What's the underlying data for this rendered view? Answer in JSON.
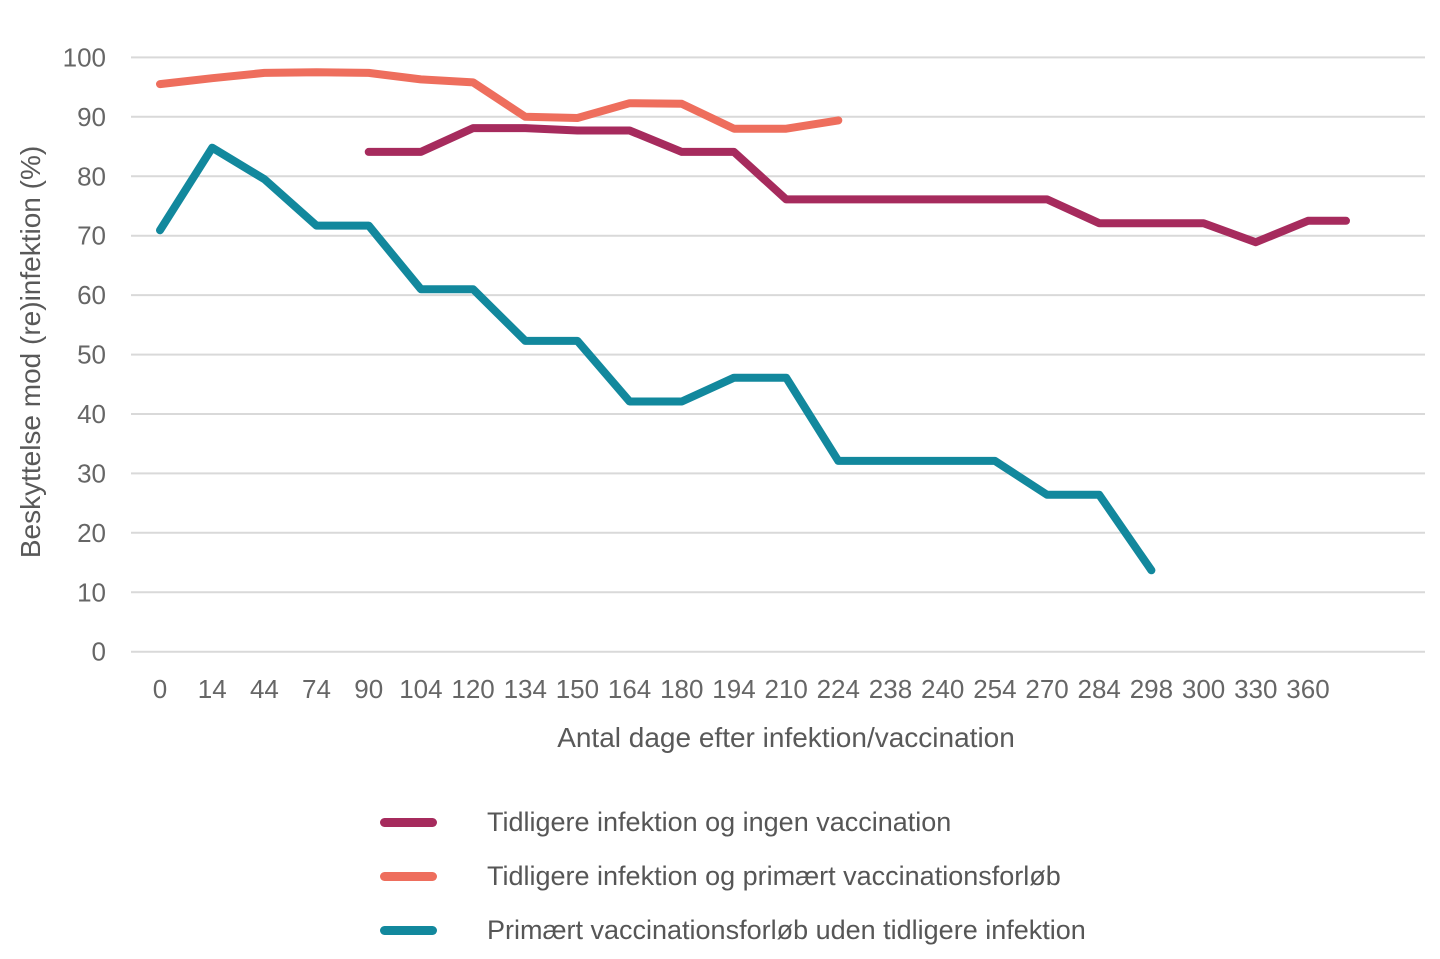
{
  "chart_data": {
    "type": "line",
    "title": "",
    "xlabel": "Antal dage efter infektion/vaccination",
    "ylabel": "Beskyttelse mod (re)infektion (%)",
    "ylim": [
      0,
      100
    ],
    "ytick_step": 10,
    "ytick_labels": [
      "0",
      "10",
      "20",
      "30",
      "40",
      "50",
      "60",
      "70",
      "80",
      "90",
      "100"
    ],
    "grid": "horizontal",
    "grid_color": "#D9D9D9",
    "background_color": "#FFFFFF",
    "tick_text_color": "#666666",
    "axis_title_color": "#595959",
    "legend_text_color": "#565656",
    "legend_position": "bottom",
    "categories": [
      "0",
      "14",
      "44",
      "74",
      "90",
      "104",
      "120",
      "134",
      "150",
      "164",
      "180",
      "194",
      "210",
      "224",
      "238",
      "240",
      "254",
      "270",
      "284",
      "298",
      "300",
      "330",
      "360"
    ],
    "series": [
      {
        "name": "Tidligere infektion og ingen vaccination",
        "color": "#A62B5D",
        "start_index": 4,
        "values": [
          84.1,
          84.1,
          88.1,
          88.1,
          87.7,
          87.7,
          84.1,
          84.1,
          76.1,
          76.1,
          76.1,
          76.1,
          76.1,
          76.1,
          72.1,
          72.1,
          72.1,
          68.9,
          72.5
        ],
        "extends_past_last_tick": true
      },
      {
        "name": "Tidligere infektion og primært vaccinationsforløb",
        "color": "#EE6E5D",
        "start_index": 0,
        "values": [
          95.5,
          96.5,
          97.4,
          97.5,
          97.4,
          96.3,
          95.8,
          90.0,
          89.8,
          92.3,
          92.2,
          88.0,
          88.0,
          89.4
        ],
        "extends_past_last_tick": false
      },
      {
        "name": "Primært vaccinationsforløb uden tidligere infektion",
        "color": "#12889D",
        "start_index": 0,
        "values": [
          70.9,
          84.8,
          79.5,
          71.7,
          71.7,
          61.0,
          61.0,
          52.3,
          52.3,
          42.1,
          42.1,
          46.1,
          46.1,
          32.1,
          32.1,
          32.1,
          32.1,
          26.4,
          26.4,
          13.7
        ],
        "extends_past_last_tick": false
      }
    ],
    "legend_order": [
      0,
      1,
      2
    ]
  }
}
